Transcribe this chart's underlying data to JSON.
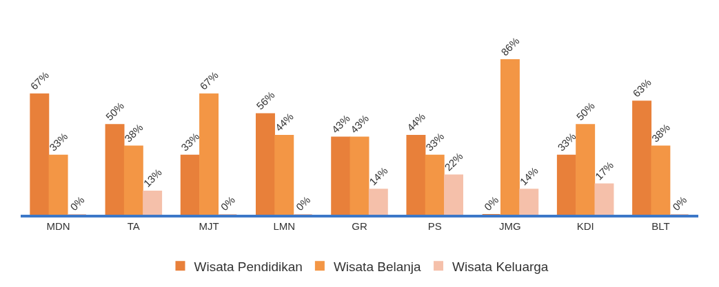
{
  "chart_data": {
    "type": "bar",
    "categories": [
      "MDN",
      "TA",
      "MJT",
      "LMN",
      "GR",
      "PS",
      "JMG",
      "KDI",
      "BLT"
    ],
    "series": [
      {
        "name": "Wisata Pendidikan",
        "color": "#e8803a",
        "values": [
          67,
          50,
          33,
          56,
          43,
          44,
          0,
          33,
          63
        ],
        "value_labels": [
          "67%",
          "50%",
          "33%",
          "56%",
          "43%",
          "44%",
          "0%",
          "33%",
          "63%"
        ]
      },
      {
        "name": "Wisata Belanja",
        "color": "#f39645",
        "values": [
          33,
          38,
          67,
          44,
          43,
          33,
          86,
          50,
          38
        ],
        "value_labels": [
          "33%",
          "38%",
          "67%",
          "44%",
          "43%",
          "33%",
          "86%",
          "50%",
          "38%"
        ]
      },
      {
        "name": "Wisata Keluarga",
        "color": "#f5c0aa",
        "values": [
          0,
          13,
          0,
          0,
          14,
          22,
          14,
          17,
          0
        ],
        "value_labels": [
          "0%",
          "13%",
          "0%",
          "0%",
          "14%",
          "22%",
          "14%",
          "17%",
          "0%"
        ]
      }
    ],
    "legend": "bottom"
  }
}
